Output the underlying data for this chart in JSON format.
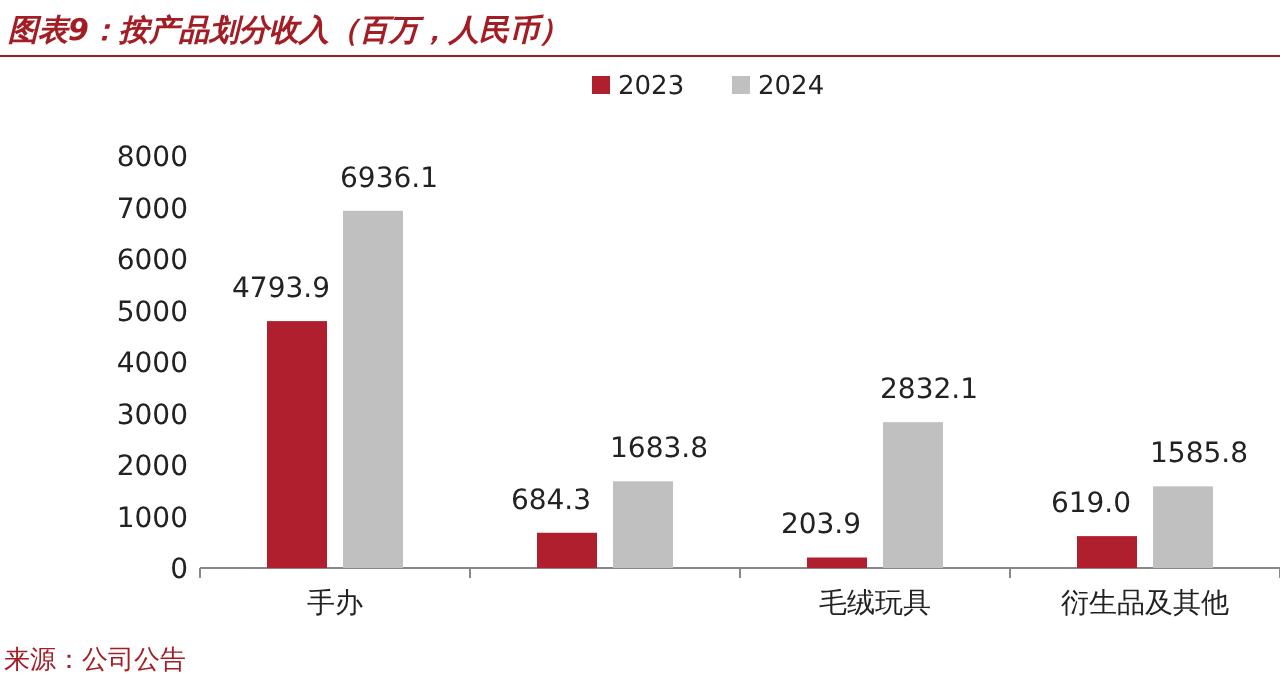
{
  "chart_data": {
    "type": "bar",
    "title": "图表9：按产品划分收入（百万，人民币）",
    "categories": [
      "手办",
      null,
      "毛绒玩具",
      "衍生品及其他"
    ],
    "series": [
      {
        "name": "2023",
        "color": "#b01f2e",
        "values": [
          4793.9,
          684.3,
          203.9,
          619.0
        ],
        "value_labels": [
          "4793.9",
          "684.3",
          "203.9",
          "619.0"
        ]
      },
      {
        "name": "2024",
        "color": "#c0c0c0",
        "values": [
          6936.1,
          1683.8,
          2832.1,
          1585.8
        ],
        "value_labels": [
          "6936.1",
          "1683.8",
          "2832.1",
          "1585.8"
        ]
      }
    ],
    "ylim": [
      0,
      8000
    ],
    "yticks": [
      0,
      1000,
      2000,
      3000,
      4000,
      5000,
      6000,
      7000,
      8000
    ],
    "legend": "top",
    "grid": false,
    "annotations": [
      "来源：公司公告"
    ]
  }
}
